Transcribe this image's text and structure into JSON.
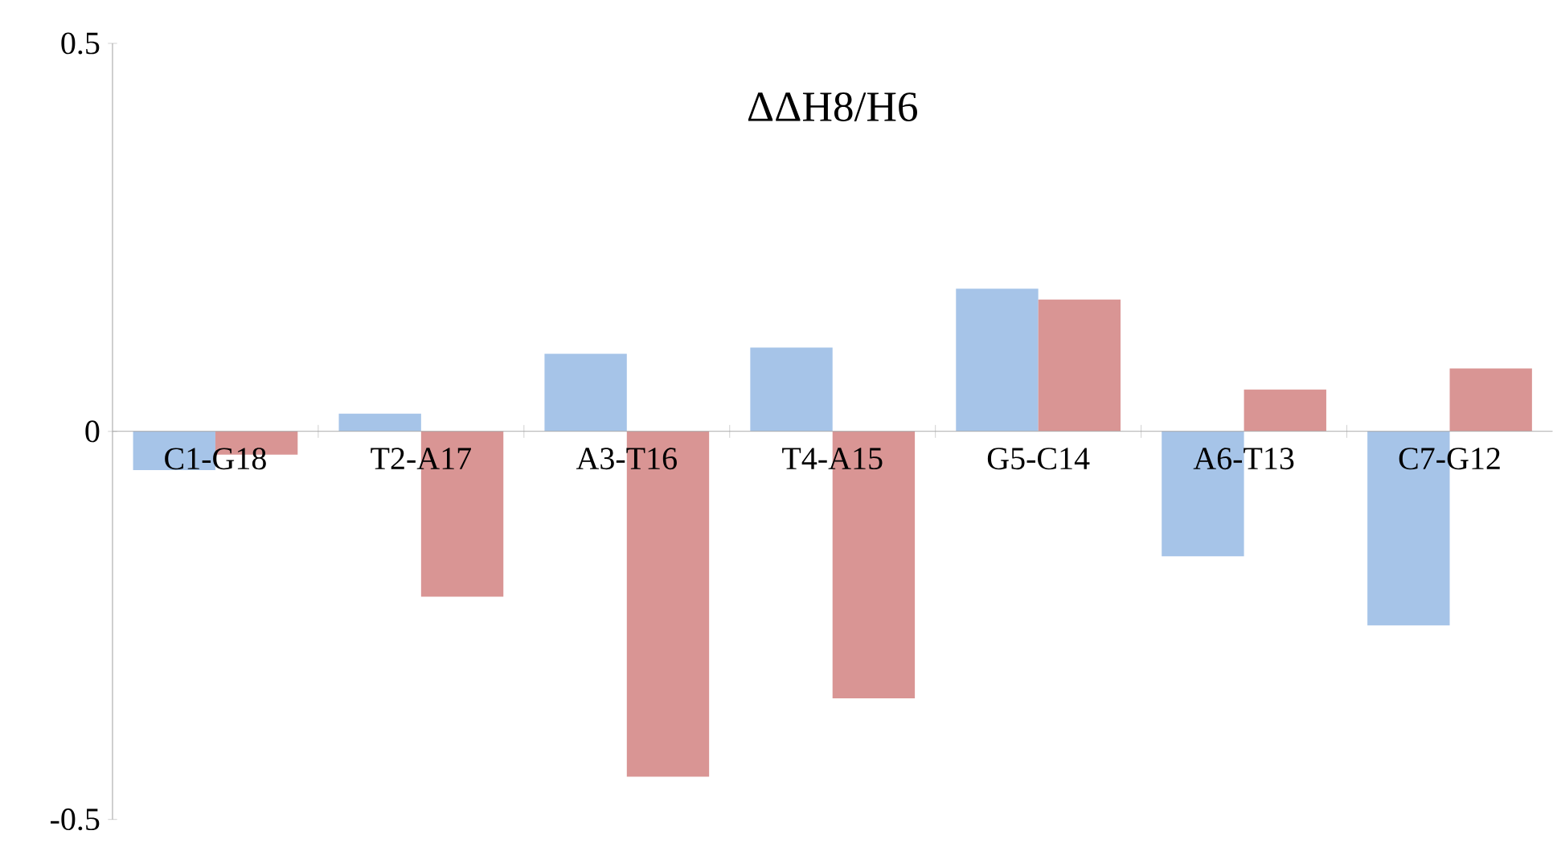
{
  "chart_data": {
    "type": "bar",
    "title": "ΔΔH8/H6",
    "categories": [
      "C1-G18",
      "T2-A17",
      "A3-T16",
      "T4-A15",
      "G5-C14",
      "A6-T13",
      "C7-G12"
    ],
    "series": [
      {
        "color": "#a6c4e8",
        "values": [
          -0.05,
          0.023,
          0.1,
          0.108,
          0.184,
          -0.161,
          -0.25
        ]
      },
      {
        "color": "#d99594",
        "values": [
          -0.03,
          -0.213,
          -0.445,
          -0.344,
          0.17,
          0.054,
          0.081
        ]
      }
    ],
    "ylim": [
      -0.5,
      0.5
    ],
    "yticks": [
      -0.5,
      0,
      0.5
    ]
  }
}
